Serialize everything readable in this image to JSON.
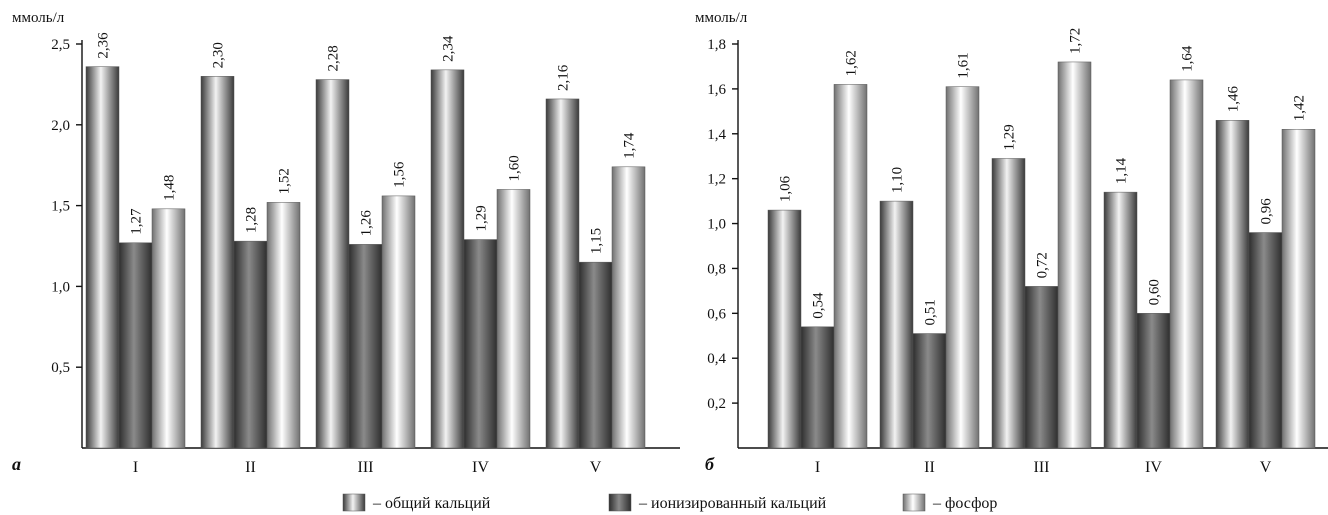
{
  "legend": [
    {
      "key": "total",
      "label": "– общий кальций"
    },
    {
      "key": "ionized",
      "label": "– ионизированный кальций"
    },
    {
      "key": "phosphorus",
      "label": "– фосфор"
    }
  ],
  "colors": {
    "total": [
      "#3a3a3a",
      "#f2f2f2",
      "#3a3a3a"
    ],
    "ionized": [
      "#2e2e2e",
      "#8a8a8a",
      "#2e2e2e"
    ],
    "phosphorus": [
      "#707070",
      "#ffffff",
      "#707070"
    ]
  },
  "chart_data": [
    {
      "type": "bar",
      "panel_letter": "а",
      "unit_label": "ммоль/л",
      "categories": [
        "I",
        "II",
        "III",
        "IV",
        "V"
      ],
      "series": [
        {
          "key": "total",
          "values": [
            2.36,
            2.3,
            2.28,
            2.34,
            2.16
          ],
          "labels": [
            "2,36",
            "2,30",
            "2,28",
            "2,34",
            "2,16"
          ]
        },
        {
          "key": "ionized",
          "values": [
            1.27,
            1.28,
            1.26,
            1.29,
            1.15
          ],
          "labels": [
            "1,27",
            "1,28",
            "1,26",
            "1,29",
            "1,15"
          ]
        },
        {
          "key": "phosphorus",
          "values": [
            1.48,
            1.52,
            1.56,
            1.6,
            1.74
          ],
          "labels": [
            "1,48",
            "1,52",
            "1,56",
            "1,60",
            "1,74"
          ]
        }
      ],
      "ylim": [
        0,
        2.5
      ],
      "yticks": [
        0.5,
        1.0,
        1.5,
        2.0,
        2.5
      ],
      "ytick_labels": [
        "0,5",
        "1,0",
        "1,5",
        "2,0",
        "2,5"
      ],
      "grid": false
    },
    {
      "type": "bar",
      "panel_letter": "б",
      "unit_label": "ммоль/л",
      "categories": [
        "I",
        "II",
        "III",
        "IV",
        "V"
      ],
      "series": [
        {
          "key": "total",
          "values": [
            1.06,
            1.1,
            1.29,
            1.14,
            1.46
          ],
          "labels": [
            "1,06",
            "1,10",
            "1,29",
            "1,14",
            "1,46"
          ]
        },
        {
          "key": "ionized",
          "values": [
            0.54,
            0.51,
            0.72,
            0.6,
            0.96
          ],
          "labels": [
            "0,54",
            "0,51",
            "0,72",
            "0,60",
            "0,96"
          ]
        },
        {
          "key": "phosphorus",
          "values": [
            1.62,
            1.61,
            1.72,
            1.64,
            1.42
          ],
          "labels": [
            "1,62",
            "1,61",
            "1,72",
            "1,64",
            "1,42"
          ]
        }
      ],
      "ylim": [
        0,
        1.8
      ],
      "yticks": [
        0.2,
        0.4,
        0.6,
        0.8,
        1.0,
        1.2,
        1.4,
        1.6,
        1.8
      ],
      "ytick_labels": [
        "0,2",
        "0,4",
        "0,6",
        "0,8",
        "1,0",
        "1,2",
        "1,4",
        "1,6",
        "1,8"
      ],
      "grid": false
    }
  ]
}
